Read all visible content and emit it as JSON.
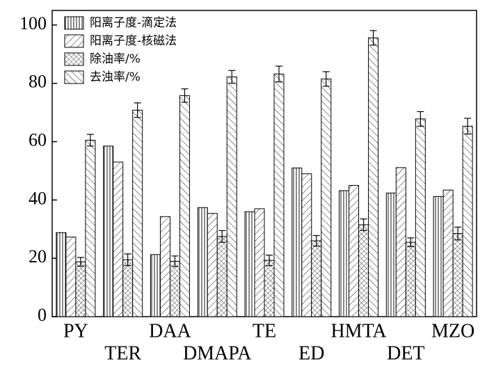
{
  "chart_data": {
    "type": "bar",
    "categories": [
      "PY",
      "TER",
      "DAA",
      "DMAPA",
      "TE",
      "ED",
      "HMTA",
      "DET",
      "MZO"
    ],
    "series": [
      {
        "name": "阳离子度-滴定法",
        "color": "#000000",
        "hatch": "vertical",
        "values": [
          28.8,
          58.5,
          21.3,
          37.4,
          36.0,
          51.0,
          43.2,
          42.4,
          41.2
        ]
      },
      {
        "name": "阳离子度-核磁法",
        "color": "#000000",
        "hatch": "forward",
        "values": [
          27.3,
          53.0,
          34.3,
          35.4,
          37.0,
          49.0,
          45.0,
          51.1,
          43.4
        ]
      },
      {
        "name": "除油率/%",
        "color": "#000000",
        "hatch": "cross",
        "values": [
          18.8,
          19.5,
          19.0,
          27.5,
          19.3,
          26.0,
          31.5,
          25.5,
          28.5
        ],
        "errors": [
          1.5,
          2.0,
          1.8,
          2.0,
          1.8,
          1.8,
          2.0,
          1.5,
          2.2
        ]
      },
      {
        "name": "去浊率/%",
        "color": "#000000",
        "hatch": "backward",
        "values": [
          60.5,
          70.8,
          75.8,
          82.2,
          83.2,
          81.5,
          95.6,
          67.8,
          65.3
        ],
        "errors": [
          2.0,
          2.5,
          2.3,
          2.2,
          2.7,
          2.5,
          2.5,
          2.5,
          2.7
        ]
      }
    ],
    "ylim": [
      0,
      105
    ],
    "yticks": [
      0,
      20,
      40,
      60,
      80,
      100
    ],
    "legend": "upper left"
  }
}
